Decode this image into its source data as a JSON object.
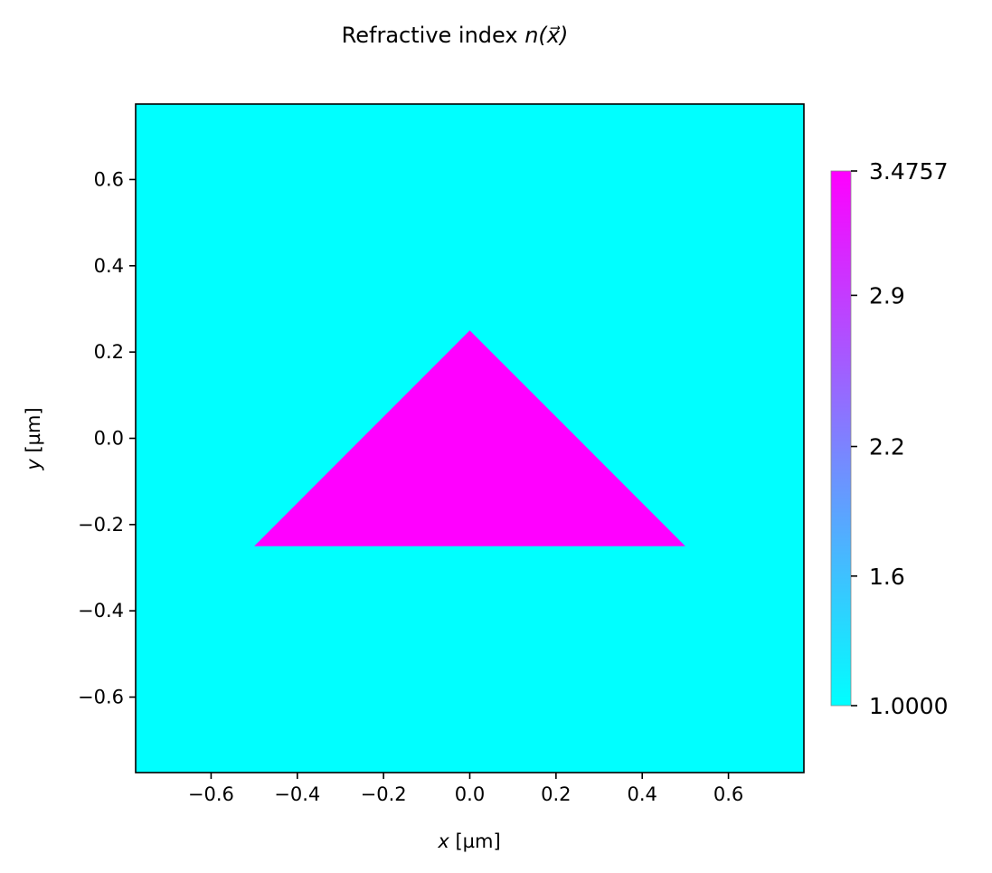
{
  "chart_data": {
    "type": "heatmap",
    "title_main": "Refractive index ",
    "title_math": "n(x⃗)",
    "xlabel_var": "x",
    "xlabel_unit": " [µm]",
    "ylabel_var": "y",
    "ylabel_unit": " [µm]",
    "xlim": [
      -0.775,
      0.775
    ],
    "ylim": [
      -0.775,
      0.775
    ],
    "x_ticks": [
      -0.6,
      -0.4,
      -0.2,
      0.0,
      0.2,
      0.4,
      0.6
    ],
    "x_tick_labels": [
      "−0.6",
      "−0.4",
      "−0.2",
      "0.0",
      "0.2",
      "0.4",
      "0.6"
    ],
    "y_ticks": [
      0.6,
      0.4,
      0.2,
      0.0,
      -0.2,
      -0.4,
      -0.6
    ],
    "y_tick_labels": [
      "0.6",
      "0.4",
      "0.2",
      "0.0",
      "−0.2",
      "−0.4",
      "−0.6"
    ],
    "background_index": 1.0,
    "shape": {
      "kind": "triangle",
      "index": 3.4757,
      "vertices": [
        [
          0.0,
          0.25
        ],
        [
          -0.5,
          -0.25
        ],
        [
          0.5,
          -0.25
        ]
      ]
    },
    "colorbar": {
      "colormap": "cool",
      "vmin": 1.0,
      "vmax": 3.4757,
      "ticks": [
        3.4757,
        2.9,
        2.2,
        1.6,
        1.0
      ],
      "tick_labels": [
        "3.4757",
        "2.9",
        "2.2",
        "1.6",
        "1.0000"
      ],
      "color_min": "#00ffff",
      "color_max": "#ff00ff"
    },
    "grid": false
  }
}
